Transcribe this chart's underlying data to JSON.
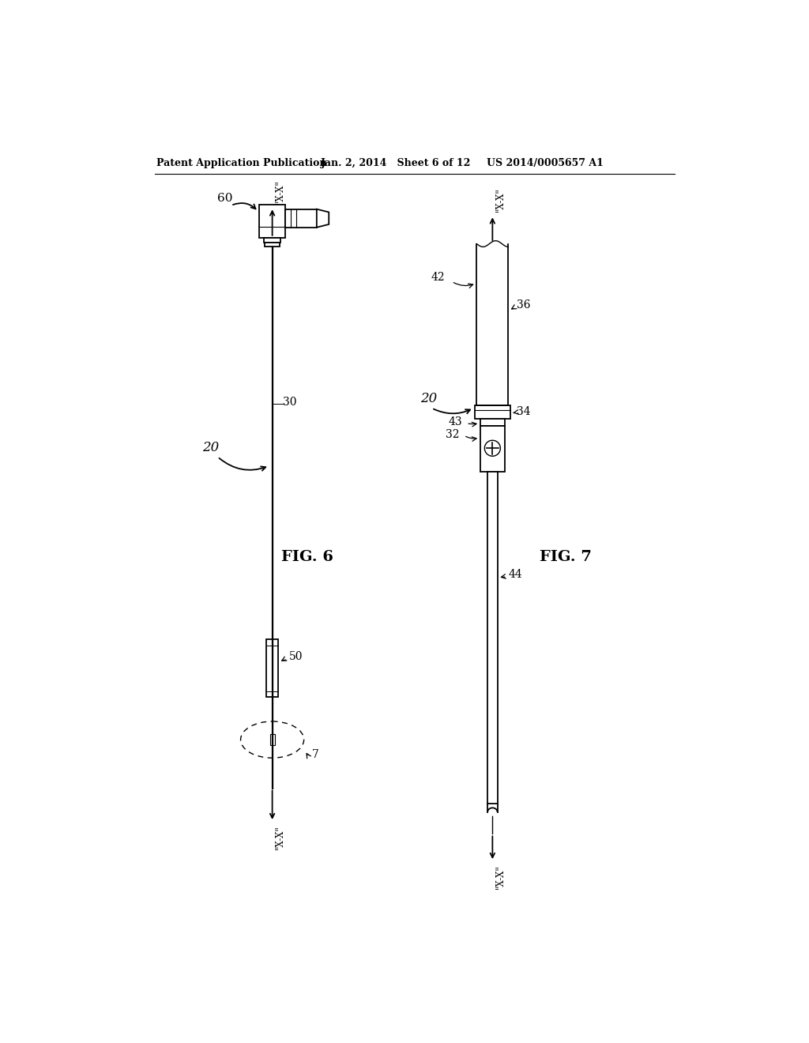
{
  "bg_color": "#ffffff",
  "line_color": "#000000",
  "header_left": "Patent Application Publication",
  "header_center": "Jan. 2, 2014   Sheet 6 of 12",
  "header_right": "US 2014/0005657 A1",
  "fig6_label": "FIG. 6",
  "fig7_label": "FIG. 7",
  "label_20a": "20",
  "label_20b": "20",
  "label_30": "30",
  "label_50": "50",
  "label_60": "60",
  "label_7": "7",
  "label_xx_top6": "\"X-X\"",
  "label_xx_bot6": "\"X-X\"",
  "label_xx_top7": "\"X-X\"",
  "label_xx_bot7": "\"X-X\"",
  "label_42": "42",
  "label_36": "36",
  "label_34": "34",
  "label_32": "32",
  "label_43": "43",
  "label_44": "44"
}
